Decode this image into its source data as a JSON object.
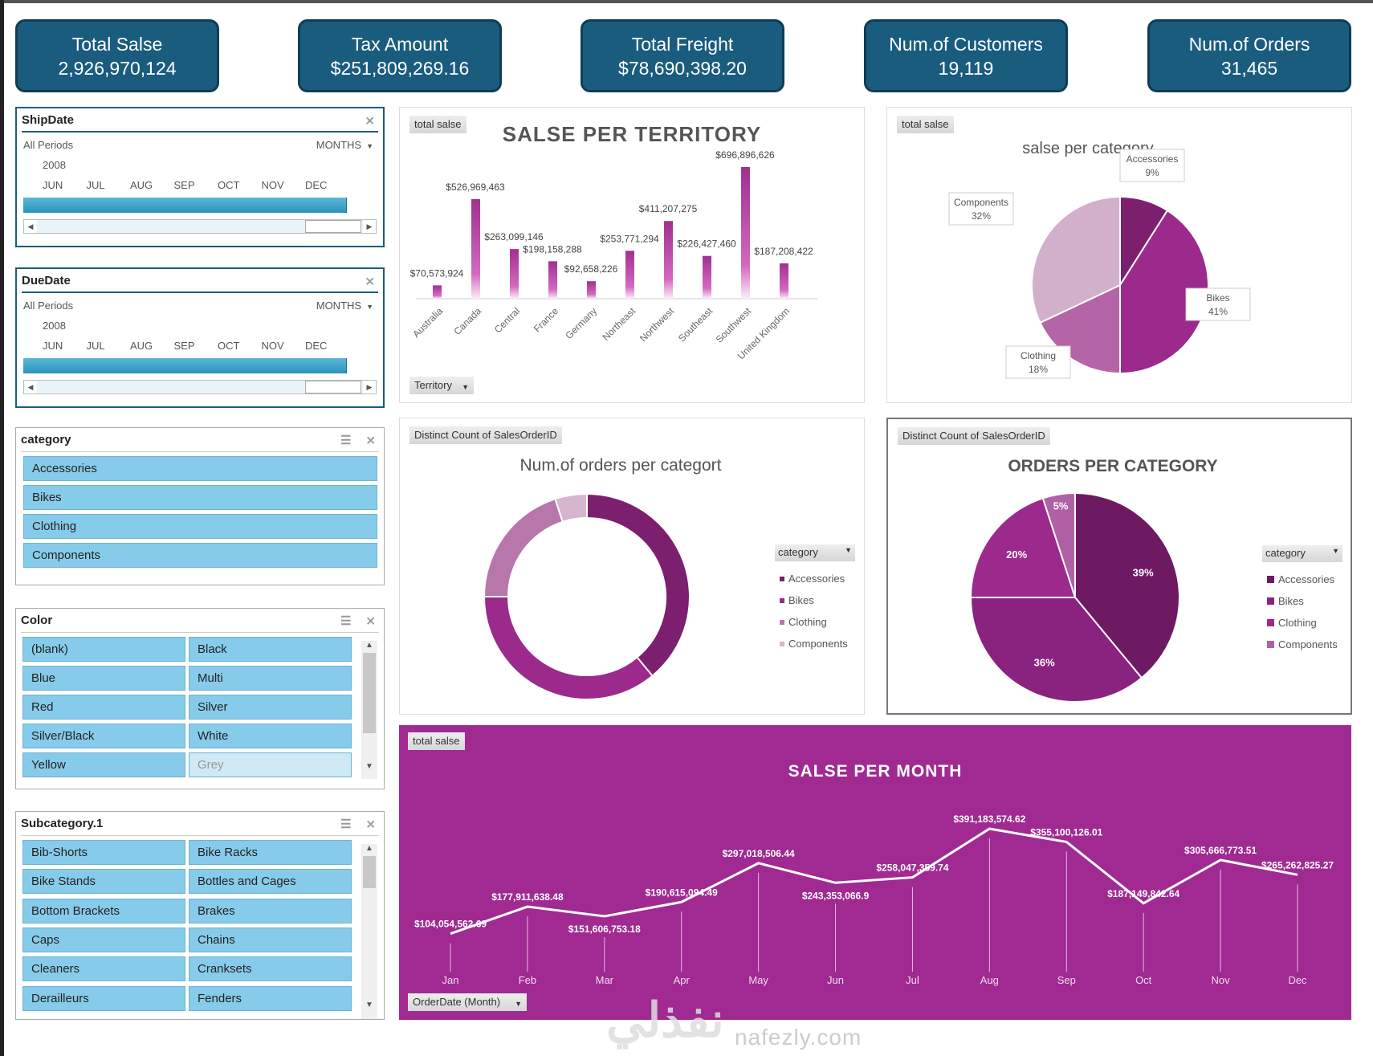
{
  "kpis": [
    {
      "label": "Total Salse",
      "value": "2,926,970,124"
    },
    {
      "label": "Tax Amount",
      "value": "$251,809,269.16"
    },
    {
      "label": "Total Freight",
      "value": "$78,690,398.20"
    },
    {
      "label": "Num.of Customers",
      "value": "19,119"
    },
    {
      "label": "Num.of Orders",
      "value": "31,465"
    }
  ],
  "timelines": [
    {
      "title": "ShipDate",
      "period": "All Periods",
      "unit": "MONTHS",
      "year": "2008",
      "months": [
        "JUN",
        "JUL",
        "AUG",
        "SEP",
        "OCT",
        "NOV",
        "DEC"
      ]
    },
    {
      "title": "DueDate",
      "period": "All Periods",
      "unit": "MONTHS",
      "year": "2008",
      "months": [
        "JUN",
        "JUL",
        "AUG",
        "SEP",
        "OCT",
        "NOV",
        "DEC"
      ]
    }
  ],
  "category_slicer": {
    "title": "category",
    "items": [
      "Accessories",
      "Bikes",
      "Clothing",
      "Components"
    ]
  },
  "color_slicer": {
    "title": "Color",
    "items": [
      "(blank)",
      "Black",
      "Blue",
      "Multi",
      "Red",
      "Silver",
      "Silver/Black",
      "White",
      "Yellow",
      "Grey"
    ]
  },
  "subcategory_slicer": {
    "title": "Subcategory.1",
    "items": [
      "Bib-Shorts",
      "Bike Racks",
      "Bike Stands",
      "Bottles and Cages",
      "Bottom Brackets",
      "Brakes",
      "Caps",
      "Chains",
      "Cleaners",
      "Cranksets",
      "Derailleurs",
      "Fenders"
    ]
  },
  "colors": {
    "kpi": "#1a5c7e",
    "slicer_button": "#87cbea",
    "accent": "#9b2a8c",
    "month_bg": "#a02a92"
  },
  "watermark": {
    "arabic": "نفذلي",
    "latin": "nafezly.com"
  },
  "chart_data": [
    {
      "type": "bar",
      "title": "SALSE PER TERRITORY",
      "field_button": "total salse",
      "axis_button": "Territory",
      "categories": [
        "Australia",
        "Canada",
        "Central",
        "France",
        "Germany",
        "Northeast",
        "Northwest",
        "Southeast",
        "Southwest",
        "United Kingdom"
      ],
      "values": [
        70573924,
        526969463,
        263099146,
        198158288,
        92658226,
        253771294,
        411207275,
        226427460,
        696896626,
        187208422
      ],
      "labels": [
        "$70,573,924",
        "$526,969,463",
        "$263,099,146",
        "$198,158,288",
        "$92,658,226",
        "$253,771,294",
        "$411,207,275",
        "$226,427,460",
        "$696,896,626",
        "$187,208,422"
      ]
    },
    {
      "type": "pie",
      "title": "salse per category",
      "field_button": "total salse",
      "categories": [
        "Accessories",
        "Bikes",
        "Clothing",
        "Components"
      ],
      "values": [
        9,
        41,
        18,
        32
      ],
      "labels": [
        "9%",
        "41%",
        "18%",
        "32%"
      ],
      "colors": [
        "#7b1f6e",
        "#9b2a8c",
        "#b565a7",
        "#d2afcb"
      ]
    },
    {
      "type": "pie",
      "subtype": "donut",
      "title": "Num.of orders per categort",
      "field_button": "Distinct  Count of SalesOrderID",
      "legend_title": "category",
      "categories": [
        "Accessories",
        "Bikes",
        "Clothing",
        "Components"
      ],
      "values": [
        39,
        36,
        20,
        5
      ],
      "colors": [
        "#7b1f6e",
        "#9b2a8c",
        "#b777ab",
        "#d6b5cf"
      ]
    },
    {
      "type": "pie",
      "title": "ORDERS PER CATEGORY",
      "field_button": "Distinct  Count of SalesOrderID",
      "legend_title": "category",
      "categories": [
        "Accessories",
        "Bikes",
        "Clothing",
        "Components"
      ],
      "values": [
        39,
        36,
        20,
        5
      ],
      "labels": [
        "39%",
        "36%",
        "20%",
        "5%"
      ],
      "colors": [
        "#6e1a63",
        "#8a2280",
        "#9b2a8c",
        "#b060a4"
      ]
    },
    {
      "type": "line",
      "title": "SALSE PER MONTH",
      "field_button": "total salse",
      "axis_button": "OrderDate (Month)",
      "categories": [
        "Jan",
        "Feb",
        "Mar",
        "Apr",
        "May",
        "Jun",
        "Jul",
        "Aug",
        "Sep",
        "Oct",
        "Nov",
        "Dec"
      ],
      "values": [
        104054562.69,
        177911638.48,
        151606753.18,
        190615094.49,
        297018506.44,
        243353066.9,
        258047359.74,
        391183574.62,
        355100126.01,
        187149842.64,
        305666773.51,
        265262825.27
      ],
      "labels": [
        "$104,054,562.69",
        "$177,911,638.48",
        "$151,606,753.18",
        "$190,615,094.49",
        "$297,018,506.44",
        "$243,353,066.9",
        "$258,047,359.74",
        "$391,183,574.62",
        "$355,100,126.01",
        "$187,149,842.64",
        "$305,666,773.51",
        "$265,262,825.27"
      ]
    }
  ]
}
